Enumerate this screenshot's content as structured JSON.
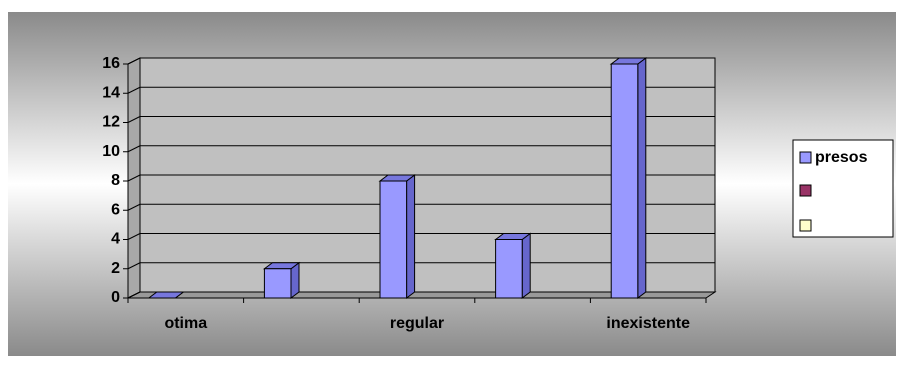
{
  "chart_data": {
    "type": "bar",
    "categories": [
      "otima",
      null,
      "regular",
      null,
      "inexistente"
    ],
    "series": [
      {
        "name": "presos",
        "color": "#9999ff",
        "values": [
          0,
          2,
          8,
          4,
          16
        ]
      }
    ],
    "ylim": [
      0,
      16
    ],
    "yticks": [
      0,
      2,
      4,
      6,
      8,
      10,
      12,
      14,
      16
    ],
    "grid": true
  }
}
